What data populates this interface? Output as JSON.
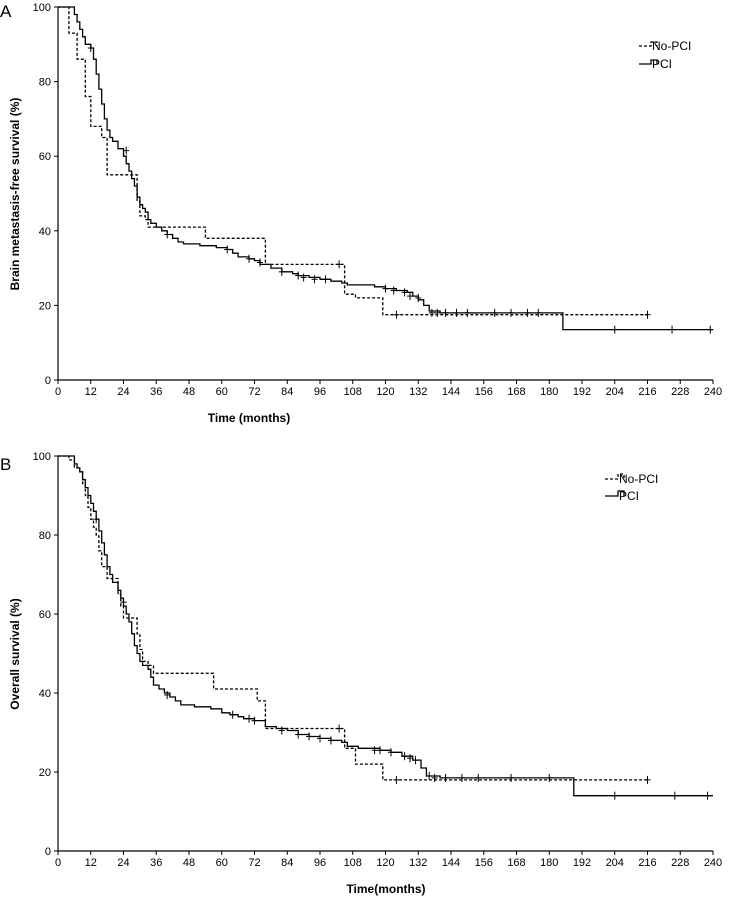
{
  "chart_data": [
    {
      "panel_label": "A",
      "type": "line",
      "subtype": "kaplan-meier",
      "title": "",
      "xlabel": "Time (months)",
      "ylabel": "Brain metastasis-free survival (%)",
      "xlim": [
        0,
        240
      ],
      "ylim": [
        0,
        100
      ],
      "xticks": [
        0,
        12,
        24,
        36,
        48,
        60,
        72,
        84,
        96,
        108,
        120,
        132,
        144,
        156,
        168,
        180,
        192,
        204,
        216,
        228,
        240
      ],
      "yticks": [
        0,
        20,
        40,
        60,
        80,
        100
      ],
      "legend_position": "top-right",
      "series": [
        {
          "name": "No-PCI",
          "style": "dashed",
          "steps": [
            [
              0,
              100
            ],
            [
              3,
              100
            ],
            [
              4,
              93
            ],
            [
              6,
              93
            ],
            [
              7,
              86
            ],
            [
              9,
              86
            ],
            [
              10,
              76
            ],
            [
              11,
              76
            ],
            [
              12,
              68
            ],
            [
              15,
              68
            ],
            [
              16,
              65
            ],
            [
              17,
              65
            ],
            [
              18,
              55
            ],
            [
              28,
              55
            ],
            [
              29,
              48
            ],
            [
              30,
              44
            ],
            [
              32,
              43
            ],
            [
              33,
              41
            ],
            [
              53,
              41
            ],
            [
              54,
              38
            ],
            [
              75,
              38
            ],
            [
              76,
              31
            ],
            [
              104,
              31
            ],
            [
              105,
              23
            ],
            [
              107,
              23
            ],
            [
              109,
              22
            ],
            [
              118,
              22
            ],
            [
              119,
              17.5
            ],
            [
              216,
              17.5
            ]
          ],
          "censored": [
            [
              103,
              31
            ],
            [
              124,
              17.5
            ],
            [
              216,
              17.5
            ]
          ]
        },
        {
          "name": "PCI",
          "style": "solid",
          "steps": [
            [
              0,
              100
            ],
            [
              5,
              100
            ],
            [
              6,
              98
            ],
            [
              7,
              96
            ],
            [
              8,
              94
            ],
            [
              9,
              92
            ],
            [
              10,
              90
            ],
            [
              12,
              89
            ],
            [
              13,
              86
            ],
            [
              14,
              82
            ],
            [
              15,
              78
            ],
            [
              16,
              74
            ],
            [
              17,
              70
            ],
            [
              18,
              67
            ],
            [
              19,
              65
            ],
            [
              20,
              64
            ],
            [
              22,
              62
            ],
            [
              24,
              60
            ],
            [
              25,
              58
            ],
            [
              26,
              56
            ],
            [
              27,
              54
            ],
            [
              28,
              52
            ],
            [
              29,
              49
            ],
            [
              30,
              47
            ],
            [
              31,
              46
            ],
            [
              32,
              45
            ],
            [
              33,
              43
            ],
            [
              34,
              42
            ],
            [
              36,
              41
            ],
            [
              38,
              40
            ],
            [
              40,
              39
            ],
            [
              42,
              38
            ],
            [
              44,
              37
            ],
            [
              46,
              36.5
            ],
            [
              52,
              36
            ],
            [
              58,
              35.5
            ],
            [
              62,
              35
            ],
            [
              64,
              34
            ],
            [
              66,
              33
            ],
            [
              70,
              32.5
            ],
            [
              72,
              32
            ],
            [
              74,
              31
            ],
            [
              78,
              30
            ],
            [
              82,
              29
            ],
            [
              86,
              28.5
            ],
            [
              88,
              28
            ],
            [
              92,
              27.5
            ],
            [
              96,
              27
            ],
            [
              100,
              26.5
            ],
            [
              104,
              26
            ],
            [
              106,
              25.5
            ],
            [
              116,
              25
            ],
            [
              120,
              24.5
            ],
            [
              124,
              24
            ],
            [
              128,
              23.5
            ],
            [
              130,
              22.5
            ],
            [
              132,
              21.5
            ],
            [
              134,
              20
            ],
            [
              136,
              18.5
            ],
            [
              140,
              18
            ],
            [
              184,
              18
            ],
            [
              185,
              13.5
            ],
            [
              240,
              13.5
            ]
          ],
          "censored": [
            [
              12,
              89
            ],
            [
              25,
              61.5
            ],
            [
              40,
              39
            ],
            [
              62,
              35
            ],
            [
              70,
              32.5
            ],
            [
              74,
              31.5
            ],
            [
              82,
              29
            ],
            [
              88,
              28
            ],
            [
              90,
              27.5
            ],
            [
              94,
              27
            ],
            [
              98,
              27
            ],
            [
              120,
              24.5
            ],
            [
              123,
              24
            ],
            [
              127,
              23.5
            ],
            [
              129,
              22.5
            ],
            [
              132,
              22
            ],
            [
              137,
              18
            ],
            [
              139,
              18
            ],
            [
              142,
              18
            ],
            [
              146,
              18
            ],
            [
              150,
              18
            ],
            [
              160,
              18
            ],
            [
              166,
              18
            ],
            [
              172,
              18
            ],
            [
              176,
              18
            ],
            [
              204,
              13.5
            ],
            [
              225,
              13.5
            ],
            [
              239,
              13.5
            ]
          ]
        }
      ]
    },
    {
      "panel_label": "B",
      "type": "line",
      "subtype": "kaplan-meier",
      "title": "",
      "xlabel": "Time(months)",
      "ylabel": "Overall survival (%)",
      "xlim": [
        0,
        240
      ],
      "ylim": [
        0,
        100
      ],
      "xticks": [
        0,
        12,
        24,
        36,
        48,
        60,
        72,
        84,
        96,
        108,
        120,
        132,
        144,
        156,
        168,
        180,
        192,
        204,
        216,
        228,
        240
      ],
      "yticks": [
        0,
        20,
        40,
        60,
        80,
        100
      ],
      "legend_position": "top-right",
      "series": [
        {
          "name": "No-PCI",
          "style": "dashed",
          "steps": [
            [
              0,
              100
            ],
            [
              3,
              100
            ],
            [
              4,
              99
            ],
            [
              6,
              97
            ],
            [
              8,
              96
            ],
            [
              9,
              93
            ],
            [
              10,
              90
            ],
            [
              11,
              87
            ],
            [
              12,
              84
            ],
            [
              13,
              82
            ],
            [
              14,
              80
            ],
            [
              15,
              76
            ],
            [
              16,
              72
            ],
            [
              18,
              69
            ],
            [
              21,
              69
            ],
            [
              22,
              65
            ],
            [
              23,
              62
            ],
            [
              24,
              59
            ],
            [
              28,
              59
            ],
            [
              29,
              55
            ],
            [
              30,
              51
            ],
            [
              31,
              48
            ],
            [
              33,
              47
            ],
            [
              35,
              45
            ],
            [
              56,
              45
            ],
            [
              57,
              41
            ],
            [
              72,
              41
            ],
            [
              73,
              38
            ],
            [
              75,
              38
            ],
            [
              76,
              31
            ],
            [
              104,
              31
            ],
            [
              105,
              26
            ],
            [
              108,
              26
            ],
            [
              109,
              22
            ],
            [
              118,
              22
            ],
            [
              119,
              18
            ],
            [
              216,
              18
            ]
          ],
          "censored": [
            [
              103,
              31
            ],
            [
              124,
              18
            ],
            [
              216,
              18
            ]
          ]
        },
        {
          "name": "PCI",
          "style": "solid",
          "steps": [
            [
              0,
              100
            ],
            [
              5,
              100
            ],
            [
              6,
              98
            ],
            [
              7,
              97
            ],
            [
              8,
              96
            ],
            [
              9,
              94
            ],
            [
              10,
              92
            ],
            [
              11,
              90
            ],
            [
              12,
              88
            ],
            [
              13,
              86
            ],
            [
              14,
              84
            ],
            [
              15,
              81
            ],
            [
              16,
              78
            ],
            [
              17,
              75
            ],
            [
              18,
              72
            ],
            [
              19,
              70
            ],
            [
              20,
              68
            ],
            [
              22,
              66
            ],
            [
              23,
              64
            ],
            [
              24,
              62
            ],
            [
              25,
              60
            ],
            [
              26,
              58
            ],
            [
              27,
              55
            ],
            [
              28,
              52
            ],
            [
              29,
              50
            ],
            [
              30,
              48
            ],
            [
              31,
              47
            ],
            [
              33,
              46
            ],
            [
              34,
              44
            ],
            [
              35,
              42
            ],
            [
              37,
              41
            ],
            [
              39,
              40
            ],
            [
              41,
              39
            ],
            [
              43,
              38
            ],
            [
              45,
              37
            ],
            [
              50,
              36.5
            ],
            [
              56,
              36
            ],
            [
              60,
              35
            ],
            [
              63,
              34.5
            ],
            [
              66,
              34
            ],
            [
              68,
              33.5
            ],
            [
              72,
              33
            ],
            [
              76,
              31.5
            ],
            [
              80,
              31
            ],
            [
              84,
              30.5
            ],
            [
              88,
              29.5
            ],
            [
              92,
              29
            ],
            [
              96,
              28.5
            ],
            [
              100,
              28
            ],
            [
              104,
              27.5
            ],
            [
              106,
              26.5
            ],
            [
              110,
              26
            ],
            [
              118,
              25.5
            ],
            [
              122,
              25
            ],
            [
              126,
              24
            ],
            [
              130,
              23
            ],
            [
              133,
              21
            ],
            [
              135,
              19
            ],
            [
              140,
              18.5
            ],
            [
              188,
              18.5
            ],
            [
              189,
              14
            ],
            [
              240,
              14
            ]
          ],
          "censored": [
            [
              14,
              84
            ],
            [
              24,
              63
            ],
            [
              40,
              39.5
            ],
            [
              64,
              34.5
            ],
            [
              70,
              33.5
            ],
            [
              72,
              33
            ],
            [
              82,
              30.5
            ],
            [
              88,
              29.5
            ],
            [
              92,
              29
            ],
            [
              96,
              28.5
            ],
            [
              100,
              28
            ],
            [
              116,
              25.5
            ],
            [
              118,
              25.5
            ],
            [
              122,
              25
            ],
            [
              127,
              24
            ],
            [
              129,
              23.5
            ],
            [
              131,
              23
            ],
            [
              136,
              19
            ],
            [
              138,
              18.5
            ],
            [
              142,
              18.5
            ],
            [
              148,
              18.5
            ],
            [
              154,
              18.5
            ],
            [
              166,
              18.5
            ],
            [
              180,
              18.5
            ],
            [
              204,
              14
            ],
            [
              226,
              14
            ],
            [
              238,
              14
            ]
          ]
        }
      ]
    }
  ]
}
